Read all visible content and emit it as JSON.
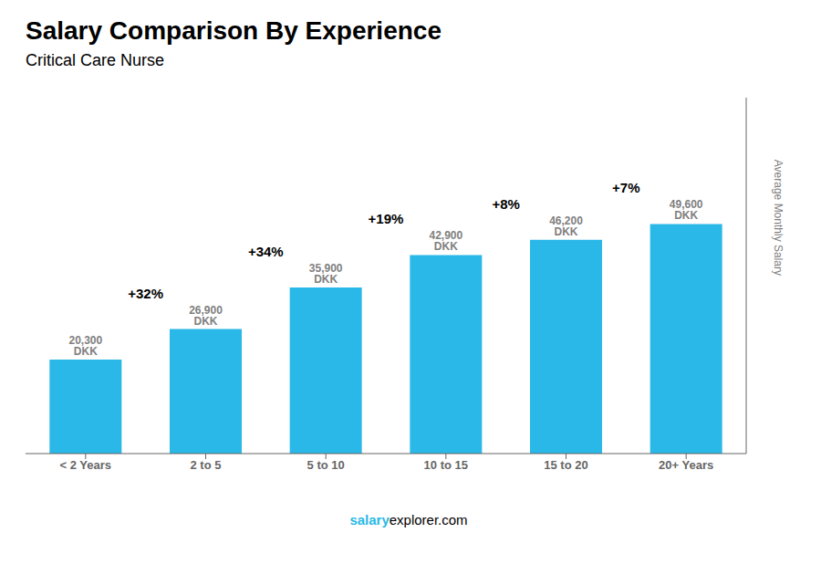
{
  "chart_data": {
    "type": "bar",
    "title": "Salary Comparison By Experience",
    "subtitle": "Critical Care Nurse",
    "categories": [
      "< 2 Years",
      "2 to 5",
      "5 to 10",
      "10 to 15",
      "15 to 20",
      "20+ Years"
    ],
    "values": [
      20300,
      26900,
      35900,
      42900,
      46200,
      49600
    ],
    "value_labels": [
      "20,300 DKK",
      "26,900 DKK",
      "35,900 DKK",
      "42,900 DKK",
      "46,200 DKK",
      "49,600 DKK"
    ],
    "data_labels": true,
    "annotations": [
      "+32%",
      "+34%",
      "+19%",
      "+8%",
      "+7%"
    ],
    "ylabel": "Average Monthly Salary",
    "footer": [
      "salary",
      "explorer.com"
    ],
    "color": "#29b8e8",
    "ylim": [
      0,
      76880
    ],
    "tick_labels": "x",
    "grid": false
  }
}
